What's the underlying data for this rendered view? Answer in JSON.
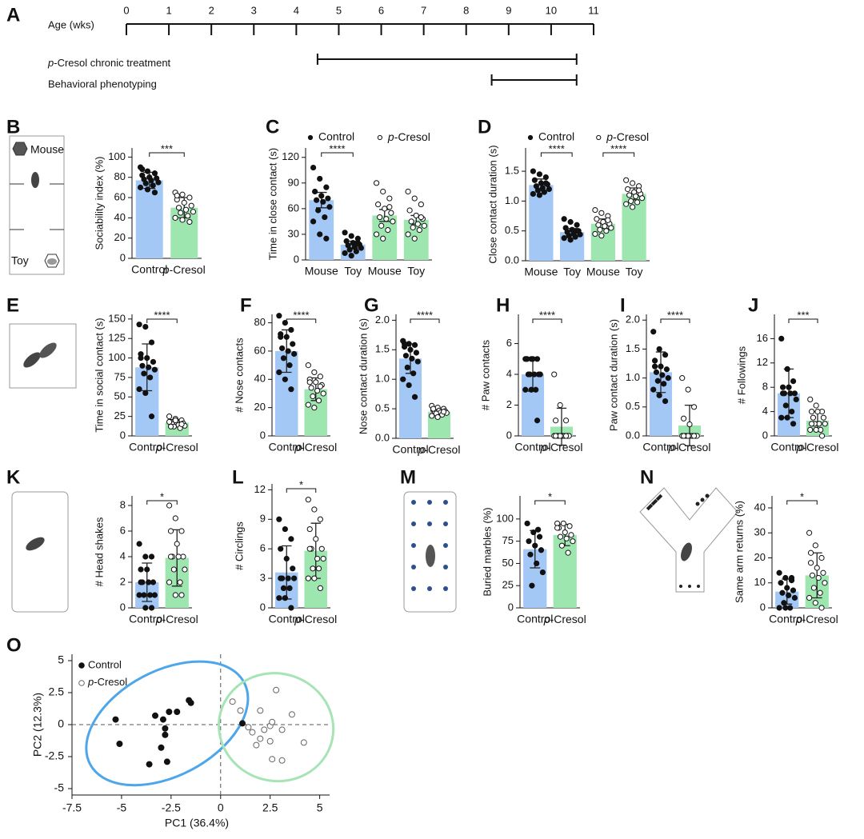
{
  "chart_data": [
    {
      "type": "timeline",
      "panel": "A",
      "xlabel": "Age (wks)",
      "xlim": [
        0,
        11
      ],
      "xticks": [
        0,
        1,
        2,
        3,
        4,
        5,
        6,
        7,
        8,
        9,
        10,
        11
      ],
      "periods": [
        {
          "label": "p-Cresol chronic treatment",
          "start": 4.5,
          "end": 10.6
        },
        {
          "label": "Behavioral phenotyping",
          "start": 8.6,
          "end": 10.6
        }
      ]
    },
    {
      "type": "bar",
      "panel": "B",
      "icon_labels": [
        "Mouse",
        "Toy"
      ],
      "ylabel": "Sociability index (%)",
      "categories": [
        "Control",
        "p-Cresol"
      ],
      "bar_colors": [
        "#a4c8f6",
        "#9ee6b0"
      ],
      "point_style": [
        "filled",
        "open"
      ],
      "values": [
        77,
        50
      ],
      "errors": [
        8,
        10
      ],
      "points": [
        [
          90,
          86,
          84,
          82,
          80,
          79,
          78,
          77,
          75,
          74,
          72,
          70,
          68,
          65,
          88
        ],
        [
          65,
          63,
          60,
          58,
          55,
          52,
          50,
          48,
          46,
          45,
          42,
          40,
          38,
          36,
          62
        ]
      ],
      "ylim": [
        0,
        109
      ],
      "yticks": [
        0,
        20,
        40,
        60,
        80,
        100
      ],
      "significance": [
        "***"
      ]
    },
    {
      "type": "bar",
      "panel": "C",
      "legend": [
        "Control",
        "p-Cresol"
      ],
      "ylabel": "Time in close contact (s)",
      "categories": [
        "Mouse",
        "Toy",
        "Mouse",
        "Toy"
      ],
      "bar_colors": [
        "#a4c8f6",
        "#a4c8f6",
        "#9ee6b0",
        "#9ee6b0"
      ],
      "point_style": [
        "filled",
        "filled",
        "open",
        "open"
      ],
      "values": [
        70,
        18,
        52,
        47
      ],
      "errors": [
        9,
        4,
        7,
        5
      ],
      "points": [
        [
          108,
          95,
          85,
          80,
          75,
          72,
          70,
          68,
          62,
          58,
          50,
          45,
          30,
          25
        ],
        [
          32,
          28,
          25,
          22,
          20,
          18,
          17,
          15,
          14,
          12,
          10,
          8,
          5,
          20
        ],
        [
          90,
          80,
          72,
          65,
          60,
          55,
          50,
          48,
          45,
          40,
          35,
          30,
          25,
          62
        ],
        [
          80,
          72,
          65,
          58,
          52,
          48,
          45,
          42,
          40,
          38,
          35,
          30,
          25,
          50
        ]
      ],
      "ylim": [
        0,
        131
      ],
      "yticks": [
        0,
        30,
        60,
        90,
        120
      ],
      "significance": [
        "****"
      ]
    },
    {
      "type": "bar",
      "panel": "D",
      "legend": [
        "Control",
        "p-Cresol"
      ],
      "ylabel": "Close contact duration (s)",
      "categories": [
        "Mouse",
        "Toy",
        "Mouse",
        "Toy"
      ],
      "bar_colors": [
        "#a4c8f6",
        "#a4c8f6",
        "#9ee6b0",
        "#9ee6b0"
      ],
      "point_style": [
        "filled",
        "filled",
        "open",
        "open"
      ],
      "values": [
        1.27,
        0.48,
        0.62,
        1.12
      ],
      "errors": [
        0.1,
        0.06,
        0.08,
        0.1
      ],
      "points": [
        [
          1.5,
          1.45,
          1.4,
          1.35,
          1.3,
          1.28,
          1.25,
          1.22,
          1.2,
          1.18,
          1.15,
          1.12,
          1.1,
          1.3
        ],
        [
          0.7,
          0.65,
          0.6,
          0.55,
          0.52,
          0.5,
          0.48,
          0.46,
          0.44,
          0.42,
          0.4,
          0.38,
          0.35,
          0.5
        ],
        [
          0.85,
          0.8,
          0.75,
          0.7,
          0.65,
          0.62,
          0.6,
          0.58,
          0.55,
          0.52,
          0.5,
          0.45,
          0.42,
          0.68
        ],
        [
          1.35,
          1.3,
          1.25,
          1.2,
          1.15,
          1.12,
          1.1,
          1.08,
          1.05,
          1.0,
          0.98,
          0.95,
          0.9,
          1.18
        ]
      ],
      "ylim": [
        0,
        1.89
      ],
      "yticks": [
        {
          "value": 0,
          "label": "0.0"
        },
        0.5,
        {
          "value": 1,
          "label": "1.0"
        },
        1.5
      ],
      "significance": [
        "****",
        "****"
      ]
    },
    {
      "type": "bar",
      "panel": "E",
      "ylabel": "Time in social contact (s)",
      "categories": [
        "Control",
        "p-Cresol"
      ],
      "bar_colors": [
        "#a4c8f6",
        "#9ee6b0"
      ],
      "point_style": [
        "filled",
        "open"
      ],
      "values": [
        88,
        17
      ],
      "errors": [
        30,
        4
      ],
      "points": [
        [
          143,
          140,
          120,
          105,
          100,
          95,
          90,
          88,
          85,
          80,
          75,
          60,
          55,
          25,
          100
        ],
        [
          25,
          22,
          20,
          18,
          17,
          16,
          15,
          14,
          13,
          12,
          10,
          18,
          20,
          15,
          12
        ]
      ],
      "ylim": [
        0,
        156
      ],
      "yticks": [
        0,
        25,
        50,
        75,
        100,
        125,
        150
      ],
      "significance": [
        "****"
      ]
    },
    {
      "type": "bar",
      "panel": "F",
      "ylabel": "# Nose contacts",
      "categories": [
        "Control",
        "p-Cresol"
      ],
      "bar_colors": [
        "#a4c8f6",
        "#9ee6b0"
      ],
      "point_style": [
        "filled",
        "open"
      ],
      "values": [
        60,
        33
      ],
      "errors": [
        15,
        8
      ],
      "points": [
        [
          85,
          80,
          75,
          72,
          70,
          65,
          62,
          60,
          58,
          55,
          50,
          45,
          40,
          33,
          70
        ],
        [
          50,
          45,
          42,
          40,
          38,
          36,
          34,
          32,
          30,
          28,
          25,
          22,
          20,
          35,
          38
        ]
      ],
      "ylim": [
        0,
        86
      ],
      "yticks": [
        0,
        20,
        40,
        60,
        80
      ],
      "significance": [
        "****"
      ]
    },
    {
      "type": "bar",
      "panel": "G",
      "ylabel": "Nose contact duration (s)",
      "categories": [
        "Control",
        "p-Cresol"
      ],
      "bar_colors": [
        "#a4c8f6",
        "#9ee6b0"
      ],
      "point_style": [
        "filled",
        "open"
      ],
      "values": [
        1.35,
        0.45
      ],
      "errors": [
        0.25,
        0.05
      ],
      "points": [
        [
          1.65,
          1.6,
          1.58,
          1.55,
          1.5,
          1.45,
          1.4,
          1.35,
          1.3,
          1.2,
          1.1,
          1.0,
          0.9,
          0.7,
          1.6
        ],
        [
          0.55,
          0.52,
          0.5,
          0.48,
          0.47,
          0.46,
          0.45,
          0.44,
          0.43,
          0.42,
          0.4,
          0.38,
          0.36,
          0.45,
          0.5
        ]
      ],
      "ylim": [
        0,
        2.1
      ],
      "yticks": [
        {
          "value": 0,
          "label": "0.0"
        },
        0.5,
        {
          "value": 1,
          "label": "1.0"
        },
        1.5,
        {
          "value": 2,
          "label": "2.0"
        }
      ],
      "significance": [
        "****"
      ]
    },
    {
      "type": "bar",
      "panel": "H",
      "ylabel": "# Paw contacts",
      "categories": [
        "Control",
        "p-Cresol"
      ],
      "bar_colors": [
        "#a4c8f6",
        "#9ee6b0"
      ],
      "point_style": [
        "filled",
        "open"
      ],
      "values": [
        4,
        0.6
      ],
      "errors": [
        1.1,
        1.2
      ],
      "points": [
        [
          5,
          5,
          5,
          5,
          5,
          4,
          4,
          4,
          4,
          4,
          3,
          3,
          3,
          1,
          5
        ],
        [
          4,
          2,
          1,
          1,
          0,
          0,
          0,
          0,
          0,
          0,
          0,
          0,
          0,
          0,
          0
        ]
      ],
      "ylim": [
        0,
        7.9
      ],
      "yticks": [
        0,
        2,
        4,
        6
      ],
      "significance": [
        "****"
      ]
    },
    {
      "type": "bar",
      "panel": "I",
      "ylabel": "Paw contact duration (s)",
      "categories": [
        "Control",
        "p-Cresol"
      ],
      "bar_colors": [
        "#a4c8f6",
        "#9ee6b0"
      ],
      "point_style": [
        "filled",
        "open"
      ],
      "values": [
        1.1,
        0.18
      ],
      "errors": [
        0.35,
        0.35
      ],
      "points": [
        [
          1.8,
          1.5,
          1.4,
          1.3,
          1.2,
          1.15,
          1.1,
          1.05,
          1.0,
          0.95,
          0.9,
          0.8,
          0.7,
          0.6,
          1.2
        ],
        [
          1.0,
          0.8,
          0.5,
          0.3,
          0.2,
          0,
          0,
          0,
          0,
          0,
          0,
          0,
          0,
          0,
          0
        ]
      ],
      "ylim": [
        0,
        2.1
      ],
      "yticks": [
        {
          "value": 0,
          "label": "0.0"
        },
        0.5,
        {
          "value": 1,
          "label": "1.0"
        },
        1.5,
        {
          "value": 2,
          "label": "2.0"
        }
      ],
      "significance": [
        "****"
      ]
    },
    {
      "type": "bar",
      "panel": "J",
      "ylabel": "# Followings",
      "categories": [
        "Control",
        "p-Cresol"
      ],
      "bar_colors": [
        "#a4c8f6",
        "#9ee6b0"
      ],
      "point_style": [
        "filled",
        "open"
      ],
      "values": [
        7,
        2.5
      ],
      "errors": [
        4,
        1.5
      ],
      "points": [
        [
          16,
          11,
          9,
          8,
          8,
          7,
          7,
          7,
          6,
          5,
          4,
          3,
          3,
          2,
          7
        ],
        [
          6,
          5,
          4,
          4,
          4,
          3,
          3,
          2,
          2,
          2,
          1,
          1,
          1,
          0,
          2
        ]
      ],
      "ylim": [
        0,
        20
      ],
      "yticks": [
        0,
        4,
        8,
        12,
        16
      ],
      "significance": [
        "***"
      ]
    },
    {
      "type": "bar",
      "panel": "K",
      "ylabel": "# Head shakes",
      "categories": [
        "Control",
        "p-Cresol"
      ],
      "bar_colors": [
        "#a4c8f6",
        "#9ee6b0"
      ],
      "point_style": [
        "filled",
        "open"
      ],
      "values": [
        2,
        3.9
      ],
      "errors": [
        1.5,
        2.2
      ],
      "points": [
        [
          5,
          4,
          4,
          3,
          3,
          2,
          2,
          2,
          1,
          1,
          1,
          1,
          0,
          0,
          2
        ],
        [
          8,
          7,
          6,
          6,
          5,
          4,
          4,
          4,
          3,
          3,
          2,
          2,
          1,
          1,
          4
        ]
      ],
      "ylim": [
        0,
        8.75
      ],
      "yticks": [
        0,
        2,
        4,
        6,
        8
      ],
      "significance": [
        "*"
      ]
    },
    {
      "type": "bar",
      "panel": "L",
      "ylabel": "# Circlings",
      "categories": [
        "Control",
        "p-Cresol"
      ],
      "bar_colors": [
        "#a4c8f6",
        "#9ee6b0"
      ],
      "point_style": [
        "filled",
        "open"
      ],
      "values": [
        3.6,
        5.8
      ],
      "errors": [
        2.7,
        2.8
      ],
      "points": [
        [
          9,
          8,
          7,
          6,
          5,
          4,
          3,
          3,
          3,
          2,
          2,
          1,
          1,
          0,
          3
        ],
        [
          11,
          10,
          9,
          8,
          7,
          6,
          6,
          5,
          5,
          4,
          4,
          3,
          3,
          2,
          6
        ]
      ],
      "ylim": [
        0,
        12.6
      ],
      "yticks": [
        0,
        3,
        6,
        9,
        12
      ],
      "significance": [
        "*"
      ]
    },
    {
      "type": "bar",
      "panel": "M",
      "ylabel": "Buried marbles (%)",
      "categories": [
        "Control",
        "p-Cresol"
      ],
      "bar_colors": [
        "#a4c8f6",
        "#9ee6b0"
      ],
      "point_style": [
        "filled",
        "open"
      ],
      "values": [
        66,
        82
      ],
      "errors": [
        21,
        12
      ],
      "points": [
        [
          95,
          85,
          80,
          75,
          70,
          65,
          60,
          50,
          40,
          25,
          88
        ],
        [
          95,
          95,
          92,
          90,
          85,
          82,
          80,
          78,
          75,
          70,
          62,
          90
        ]
      ],
      "ylim": [
        0,
        126
      ],
      "yticks": [
        0,
        25,
        50,
        75,
        100
      ],
      "significance": [
        "*"
      ]
    },
    {
      "type": "bar",
      "panel": "N",
      "ylabel": "Same arm returns (%)",
      "categories": [
        "Control",
        "p-Cresol"
      ],
      "bar_colors": [
        "#a4c8f6",
        "#9ee6b0"
      ],
      "point_style": [
        "filled",
        "open"
      ],
      "values": [
        6.5,
        13
      ],
      "errors": [
        5,
        9
      ],
      "points": [
        [
          14,
          12,
          11,
          10,
          8,
          7,
          6,
          5,
          4,
          2,
          0,
          0,
          0,
          12
        ],
        [
          30,
          25,
          20,
          18,
          16,
          14,
          13,
          12,
          10,
          8,
          6,
          4,
          2,
          0,
          22
        ]
      ],
      "ylim": [
        0,
        44.8
      ],
      "yticks": [
        0,
        10,
        20,
        30,
        40
      ],
      "significance": [
        "*"
      ]
    },
    {
      "type": "scatter",
      "panel": "O",
      "xlabel": "PC1 (36.4%)",
      "ylabel": "PC2 (12.3%)",
      "xlim": [
        -7.5,
        5.5
      ],
      "ylim": [
        -5.5,
        5.5
      ],
      "xticks": [
        -7.5,
        -5,
        -2.5,
        0,
        2.5,
        5
      ],
      "yticks": [
        -5,
        -2.5,
        0,
        2.5,
        5
      ],
      "series": [
        {
          "name": "Control",
          "marker": "filled",
          "color": "#4ea6ea",
          "x": [
            -5.3,
            -5.1,
            -3.6,
            -2.7,
            -3.3,
            -2.9,
            -2.8,
            -2.8,
            -3.0,
            -2.6,
            -2.2,
            -1.6,
            -1.5,
            1.1
          ],
          "y": [
            0.4,
            -1.5,
            -3.1,
            -2.9,
            0.7,
            0.4,
            -0.3,
            -0.8,
            -1.8,
            1.0,
            1.0,
            1.9,
            1.7,
            0.1
          ],
          "ellipse": {
            "cx": -2.7,
            "cy": 0.1,
            "rx": 4.4,
            "ry": 4.1,
            "angle": -28
          }
        },
        {
          "name": "p-Cresol",
          "marker": "open",
          "color": "#a6e4b6",
          "x": [
            0.6,
            1.0,
            2.8,
            2.0,
            1.4,
            1.6,
            2.2,
            2.5,
            2.6,
            3.1,
            3.6,
            2.0,
            2.5,
            2.6,
            3.1,
            4.2,
            1.8
          ],
          "y": [
            1.8,
            1.1,
            2.7,
            1.1,
            -0.2,
            -0.6,
            -0.4,
            -0.1,
            0.2,
            -0.4,
            0.8,
            -1.1,
            -1.3,
            -2.7,
            -2.8,
            -1.4,
            -1.6
          ],
          "ellipse": {
            "cx": 2.8,
            "cy": -0.2,
            "rx": 2.9,
            "ry": 4.2,
            "angle": 15
          }
        }
      ]
    }
  ]
}
